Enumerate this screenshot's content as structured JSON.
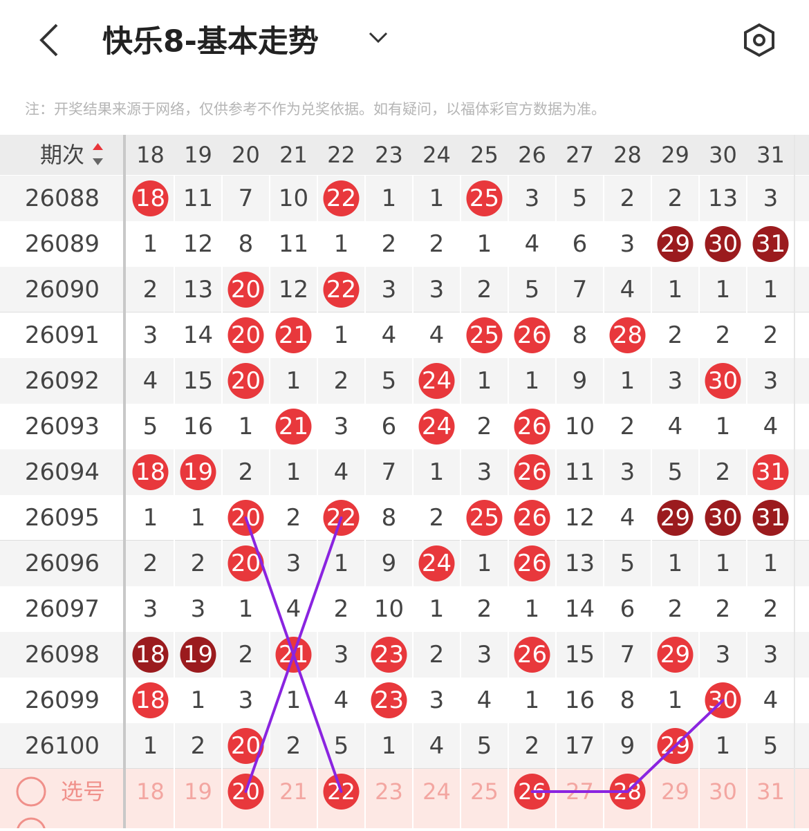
{
  "header": {
    "title": "快乐8-基本走势"
  },
  "note": "注：开奖结果来源于网络，仅供参考不作为兑奖依据。如有疑问，以福体彩官方数据为准。",
  "table": {
    "period_header": "期次",
    "columns": [
      "18",
      "19",
      "20",
      "21",
      "22",
      "23",
      "24",
      "25",
      "26",
      "27",
      "28",
      "29",
      "30",
      "31"
    ],
    "rows": [
      {
        "period": "26088",
        "cells": [
          "18",
          "11",
          "7",
          "10",
          "22",
          "1",
          "1",
          "25",
          "3",
          "5",
          "2",
          "2",
          "13",
          "3"
        ],
        "styles": [
          "red",
          "plain",
          "plain",
          "plain",
          "red",
          "plain",
          "plain",
          "red",
          "plain",
          "plain",
          "plain",
          "plain",
          "plain",
          "plain"
        ]
      },
      {
        "period": "26089",
        "cells": [
          "1",
          "12",
          "8",
          "11",
          "1",
          "2",
          "2",
          "1",
          "4",
          "6",
          "3",
          "29",
          "30",
          "31"
        ],
        "styles": [
          "plain",
          "plain",
          "plain",
          "plain",
          "plain",
          "plain",
          "plain",
          "plain",
          "plain",
          "plain",
          "plain",
          "dark",
          "dark",
          "dark"
        ]
      },
      {
        "period": "26090",
        "cells": [
          "2",
          "13",
          "20",
          "12",
          "22",
          "3",
          "3",
          "2",
          "5",
          "7",
          "4",
          "1",
          "1",
          "1"
        ],
        "styles": [
          "plain",
          "plain",
          "red",
          "plain",
          "red",
          "plain",
          "plain",
          "plain",
          "plain",
          "plain",
          "plain",
          "plain",
          "plain",
          "plain"
        ]
      },
      {
        "period": "26091",
        "cells": [
          "3",
          "14",
          "20",
          "21",
          "1",
          "4",
          "4",
          "25",
          "26",
          "8",
          "28",
          "2",
          "2",
          "2"
        ],
        "styles": [
          "plain",
          "plain",
          "red",
          "red",
          "plain",
          "plain",
          "plain",
          "red",
          "red",
          "plain",
          "red",
          "plain",
          "plain",
          "plain"
        ]
      },
      {
        "period": "26092",
        "cells": [
          "4",
          "15",
          "20",
          "1",
          "2",
          "5",
          "24",
          "1",
          "1",
          "9",
          "1",
          "3",
          "30",
          "3"
        ],
        "styles": [
          "plain",
          "plain",
          "red",
          "plain",
          "plain",
          "plain",
          "red",
          "plain",
          "plain",
          "plain",
          "plain",
          "plain",
          "red",
          "plain"
        ]
      },
      {
        "period": "26093",
        "cells": [
          "5",
          "16",
          "1",
          "21",
          "3",
          "6",
          "24",
          "2",
          "26",
          "10",
          "2",
          "4",
          "1",
          "4"
        ],
        "styles": [
          "plain",
          "plain",
          "plain",
          "red",
          "plain",
          "plain",
          "red",
          "plain",
          "red",
          "plain",
          "plain",
          "plain",
          "plain",
          "plain"
        ]
      },
      {
        "period": "26094",
        "cells": [
          "18",
          "19",
          "2",
          "1",
          "4",
          "7",
          "1",
          "3",
          "26",
          "11",
          "3",
          "5",
          "2",
          "31"
        ],
        "styles": [
          "red",
          "red",
          "plain",
          "plain",
          "plain",
          "plain",
          "plain",
          "plain",
          "red",
          "plain",
          "plain",
          "plain",
          "plain",
          "red"
        ]
      },
      {
        "period": "26095",
        "cells": [
          "1",
          "1",
          "20",
          "2",
          "22",
          "8",
          "2",
          "25",
          "26",
          "12",
          "4",
          "29",
          "30",
          "31"
        ],
        "styles": [
          "plain",
          "plain",
          "red",
          "plain",
          "red",
          "plain",
          "plain",
          "red",
          "red",
          "plain",
          "plain",
          "dark",
          "dark",
          "dark"
        ]
      },
      {
        "period": "26096",
        "cells": [
          "2",
          "2",
          "20",
          "3",
          "1",
          "9",
          "24",
          "1",
          "26",
          "13",
          "5",
          "1",
          "1",
          "1"
        ],
        "styles": [
          "plain",
          "plain",
          "red",
          "plain",
          "plain",
          "plain",
          "red",
          "plain",
          "red",
          "plain",
          "plain",
          "plain",
          "plain",
          "plain"
        ]
      },
      {
        "period": "26097",
        "cells": [
          "3",
          "3",
          "1",
          "4",
          "2",
          "10",
          "1",
          "2",
          "1",
          "14",
          "6",
          "2",
          "2",
          "2"
        ],
        "styles": [
          "plain",
          "plain",
          "plain",
          "plain",
          "plain",
          "plain",
          "plain",
          "plain",
          "plain",
          "plain",
          "plain",
          "plain",
          "plain",
          "plain"
        ]
      },
      {
        "period": "26098",
        "cells": [
          "18",
          "19",
          "2",
          "21",
          "3",
          "23",
          "2",
          "3",
          "26",
          "15",
          "7",
          "29",
          "3",
          "3"
        ],
        "styles": [
          "dark",
          "dark",
          "plain",
          "red",
          "plain",
          "red",
          "plain",
          "plain",
          "red",
          "plain",
          "plain",
          "red",
          "plain",
          "plain"
        ]
      },
      {
        "period": "26099",
        "cells": [
          "18",
          "1",
          "3",
          "1",
          "4",
          "23",
          "3",
          "4",
          "1",
          "16",
          "8",
          "1",
          "30",
          "4"
        ],
        "styles": [
          "red",
          "plain",
          "plain",
          "plain",
          "plain",
          "red",
          "plain",
          "plain",
          "plain",
          "plain",
          "plain",
          "plain",
          "red",
          "plain"
        ]
      },
      {
        "period": "26100",
        "cells": [
          "1",
          "2",
          "20",
          "2",
          "5",
          "1",
          "4",
          "5",
          "2",
          "17",
          "9",
          "29",
          "1",
          "5"
        ],
        "styles": [
          "plain",
          "plain",
          "red",
          "plain",
          "plain",
          "plain",
          "plain",
          "plain",
          "plain",
          "plain",
          "plain",
          "red",
          "plain",
          "plain"
        ]
      }
    ]
  },
  "select": {
    "label": "选号",
    "selected": [
      false,
      false,
      true,
      false,
      true,
      false,
      false,
      false,
      true,
      false,
      true,
      false,
      false,
      false
    ]
  }
}
